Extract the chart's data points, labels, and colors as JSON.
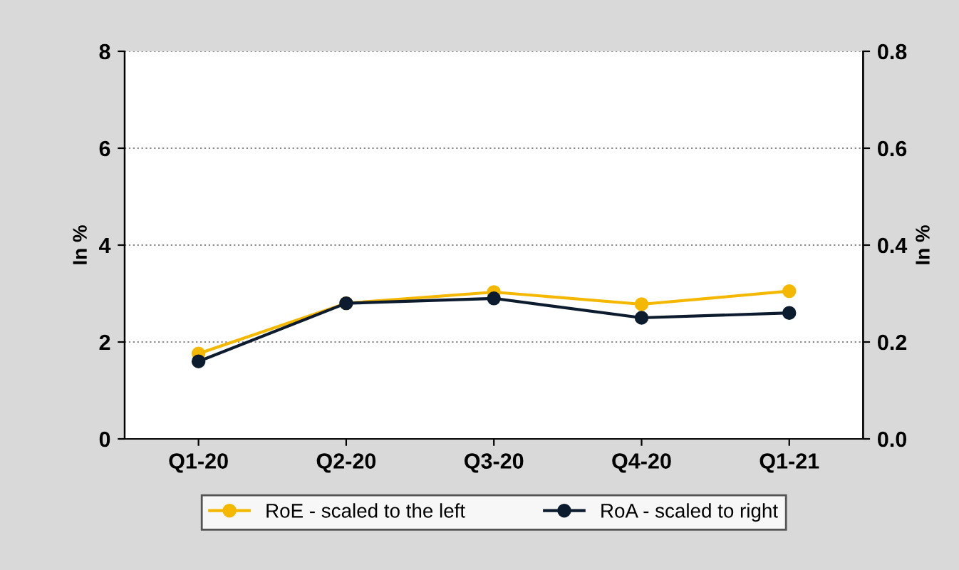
{
  "chart_data": {
    "type": "line",
    "categories": [
      "Q1-20",
      "Q2-20",
      "Q3-20",
      "Q4-20",
      "Q1-21"
    ],
    "series": [
      {
        "name": "RoE - scaled to the left",
        "color": "#f5b800",
        "values": [
          1.76,
          2.8,
          3.03,
          2.78,
          3.05
        ]
      },
      {
        "name": "RoA - scaled to right",
        "color": "#0d1b2e",
        "values": [
          0.16,
          0.28,
          0.29,
          0.25,
          0.26
        ],
        "axis": "y2"
      }
    ],
    "ylabel": "In %",
    "y2label": "In %",
    "ylim": [
      0,
      8
    ],
    "yticks": [
      0,
      2,
      4,
      6,
      8
    ],
    "y2lim": [
      0,
      0.8
    ],
    "y2ticks": [
      {
        "value": 0,
        "label": "0.0"
      },
      0.2,
      0.4,
      0.6,
      0.8
    ],
    "grid": "y",
    "legend": "bottom",
    "marker": "circle",
    "line_style": "solid"
  }
}
